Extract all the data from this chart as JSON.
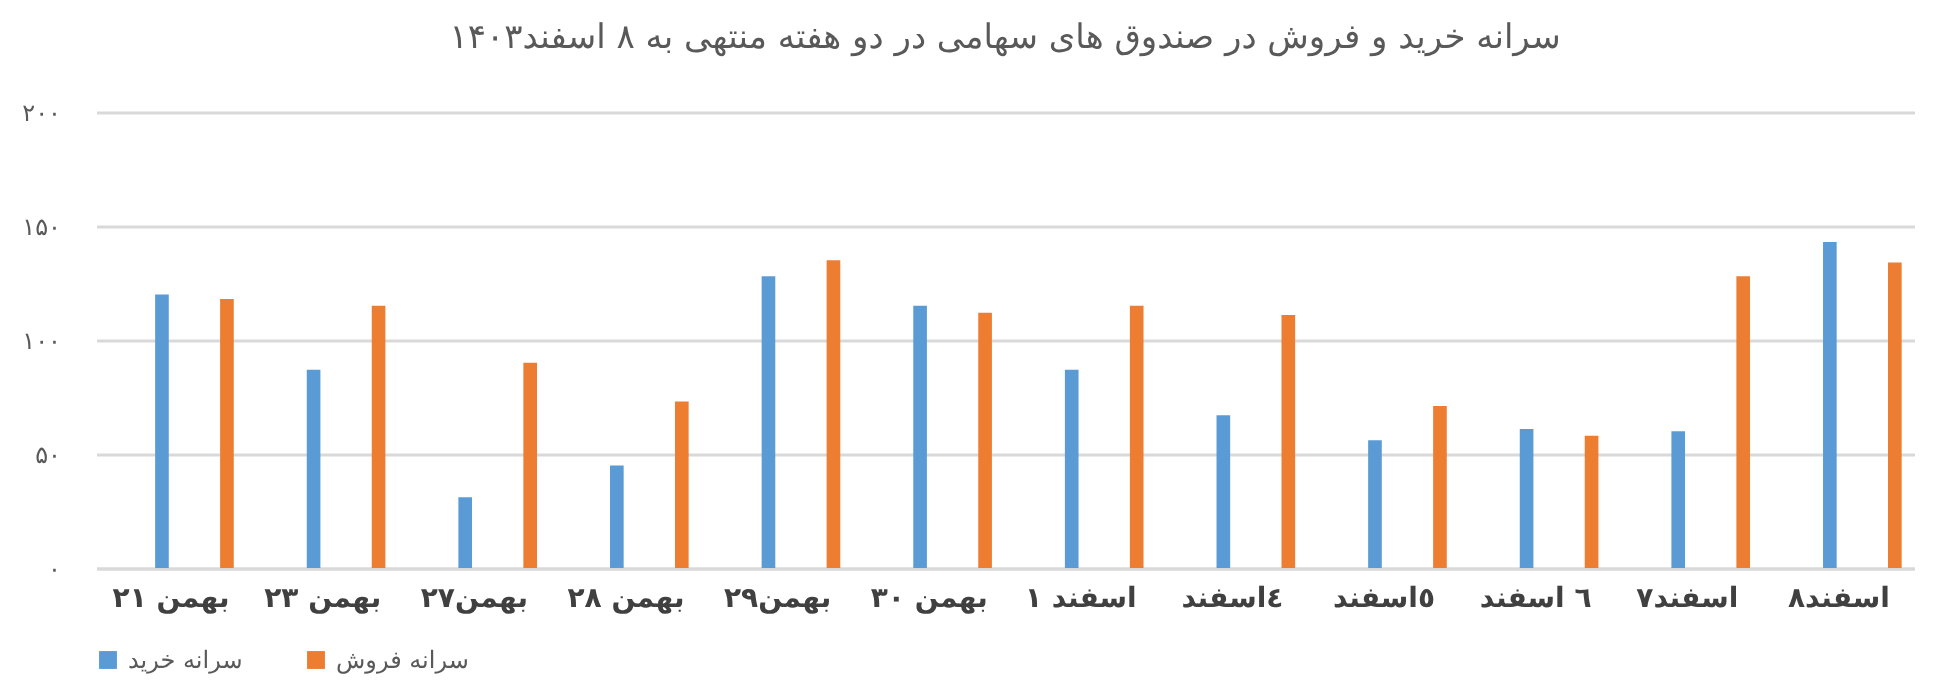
{
  "chart_data": {
    "type": "bar",
    "title": "سرانه خرید و فروش در صندوق های سهامی در دو هفته منتهی به ۸ اسفند۱۴۰۳",
    "categories": [
      "۲۱ بهمن",
      "۲۳ بهمن",
      "۲۷بهمن",
      "۲۸ بهمن",
      "۲۹بهمن",
      "۳۰ بهمن",
      "۱ اسفند",
      "٤اسفند",
      "٥اسفند",
      "٦ اسفند",
      "۷اسفند",
      "۸اسفند"
    ],
    "series": [
      {
        "name": "سرانه خرید",
        "color": "#5b9bd5",
        "values": [
          120,
          87,
          31,
          45,
          128,
          115,
          87,
          67,
          56,
          61,
          60,
          143
        ]
      },
      {
        "name": "سرانه فروش",
        "color": "#ed7d31",
        "values": [
          118,
          115,
          90,
          73,
          135,
          112,
          115,
          111,
          71,
          58,
          128,
          134
        ]
      }
    ],
    "ylim": [
      0,
      200
    ],
    "yticks": [
      {
        "value": 0,
        "label": "۰"
      },
      {
        "value": 50,
        "label": "۵۰"
      },
      {
        "value": 100,
        "label": "۱۰۰"
      },
      {
        "value": 150,
        "label": "۱۵۰"
      },
      {
        "value": 200,
        "label": "۲۰۰"
      }
    ],
    "grid": "y",
    "legend": "bottom"
  }
}
